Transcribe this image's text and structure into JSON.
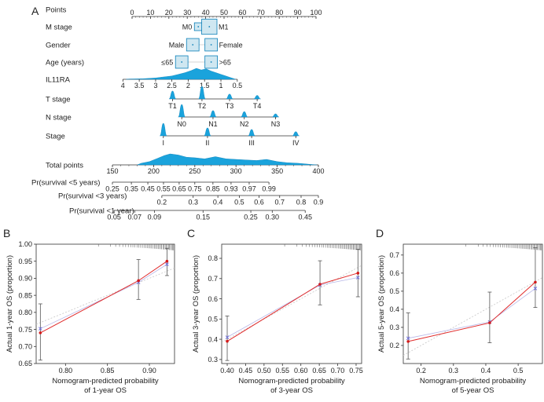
{
  "colors": {
    "density": "#1aa3dc",
    "density_dark": "#0b7fb8",
    "box_fill": "#cfe7f1",
    "box_stroke": "#0b7fb8",
    "axis": "#333333",
    "ideal_line": "#c7c7c7",
    "pred_line": "#e02a2a",
    "point": "#d31a1a",
    "cross": "#6d6de0",
    "errorbar": "#555555"
  },
  "chart_data": [
    {
      "type": "nomogram",
      "panel": "A",
      "rows": [
        {
          "label": "Points",
          "kind": "axis",
          "ticks": [
            0,
            10,
            20,
            30,
            40,
            50,
            60,
            70,
            80,
            90,
            100
          ],
          "tick_labels": [
            "0",
            "10",
            "20",
            "30",
            "40",
            "50",
            "60",
            "70",
            "80",
            "90",
            "100"
          ]
        },
        {
          "label": "M stage",
          "kind": "boxes",
          "levels": [
            {
              "name": "M0",
              "points": 36,
              "prop": 0.08
            },
            {
              "name": "M1",
              "points": 42,
              "prop": 0.92
            }
          ]
        },
        {
          "label": "Gender",
          "kind": "boxes",
          "levels": [
            {
              "name": "Male",
              "points": 33,
              "prop": 0.5
            },
            {
              "name": "Female",
              "points": 43,
              "prop": 0.5
            }
          ]
        },
        {
          "label": "Age (years)",
          "kind": "boxes",
          "levels": [
            {
              "name": "≤65",
              "points": 27,
              "prop": 0.5
            },
            {
              "name": ">65",
              "points": 43,
              "prop": 0.5
            }
          ]
        },
        {
          "label": "IL11RA",
          "kind": "continuous",
          "values": [
            4,
            3.5,
            3,
            2.5,
            2,
            1.5,
            1,
            0.5
          ],
          "value_labels": [
            "4",
            "3.5",
            "3",
            "2.5",
            "2",
            "1.5",
            "1",
            "0.5"
          ],
          "points_at_values": [
            -5,
            3.9,
            12.8,
            21.6,
            30.5,
            39.4,
            48.3,
            57.2
          ]
        },
        {
          "label": "T stage",
          "kind": "levels",
          "levels": [
            {
              "name": "T1",
              "points": 22,
              "density": 0.55
            },
            {
              "name": "T2",
              "points": 38,
              "density": 1.0
            },
            {
              "name": "T3",
              "points": 53,
              "density": 0.25
            },
            {
              "name": "T4",
              "points": 68,
              "density": 0.12
            }
          ]
        },
        {
          "label": "N stage",
          "kind": "levels",
          "levels": [
            {
              "name": "N0",
              "points": 27,
              "density": 1.0
            },
            {
              "name": "N1",
              "points": 44,
              "density": 0.4
            },
            {
              "name": "N2",
              "points": 61,
              "density": 0.3
            },
            {
              "name": "N3",
              "points": 78,
              "density": 0.08
            }
          ]
        },
        {
          "label": "Stage",
          "kind": "levels",
          "levels": [
            {
              "name": "I",
              "points": 17,
              "density": 1.0
            },
            {
              "name": "II",
              "points": 41,
              "density": 0.55
            },
            {
              "name": "III",
              "points": 65,
              "density": 0.4
            },
            {
              "name": "IV",
              "points": 89,
              "density": 0.18
            }
          ]
        },
        {
          "label": "Total points",
          "kind": "total",
          "ticks": [
            150,
            200,
            250,
            300,
            350,
            400
          ],
          "tick_labels": [
            "150",
            "200",
            "250",
            "300",
            "350",
            "400"
          ],
          "range": [
            150,
            400
          ]
        },
        {
          "label": "Pr(survival <5 years)",
          "kind": "prob",
          "tick_labels": [
            "0.25",
            "0.35",
            "0.45",
            "0.55",
            "0.65",
            "0.75",
            "0.85",
            "0.93",
            "0.97",
            "0.99"
          ],
          "total_points_at_ticks": [
            150,
            173,
            193,
            212,
            231,
            250,
            272,
            294,
            316,
            340
          ]
        },
        {
          "label": "Pr(survival <3 years)",
          "kind": "prob",
          "tick_labels": [
            "0.2",
            "0.3",
            "0.4",
            "0.5",
            "0.6",
            "0.7",
            "0.8",
            "0.9"
          ],
          "total_points_at_ticks": [
            210,
            248,
            278,
            304,
            328,
            353,
            379,
            400
          ]
        },
        {
          "label": "Pr(survival <1 year)",
          "kind": "prob",
          "tick_labels": [
            "0.05",
            "0.07",
            "0.09",
            "0.15",
            "0.25",
            "0.30",
            "0.45"
          ],
          "total_points_at_ticks": [
            152,
            177,
            201,
            260,
            318,
            344,
            384
          ]
        }
      ],
      "total_density": [
        {
          "x": 185,
          "d": 0.15
        },
        {
          "x": 195,
          "d": 0.3
        },
        {
          "x": 205,
          "d": 0.6
        },
        {
          "x": 213,
          "d": 0.85
        },
        {
          "x": 220,
          "d": 1.0
        },
        {
          "x": 230,
          "d": 0.9
        },
        {
          "x": 240,
          "d": 0.7
        },
        {
          "x": 250,
          "d": 0.65
        },
        {
          "x": 262,
          "d": 0.55
        },
        {
          "x": 275,
          "d": 0.75
        },
        {
          "x": 288,
          "d": 0.55
        },
        {
          "x": 300,
          "d": 0.5
        },
        {
          "x": 312,
          "d": 0.45
        },
        {
          "x": 325,
          "d": 0.4
        },
        {
          "x": 337,
          "d": 0.5
        },
        {
          "x": 350,
          "d": 0.3
        },
        {
          "x": 362,
          "d": 0.2
        },
        {
          "x": 375,
          "d": 0.15
        },
        {
          "x": 390,
          "d": 0.05
        }
      ],
      "il11ra_density": [
        {
          "v": 3.8,
          "d": 0.03
        },
        {
          "v": 3.4,
          "d": 0.05
        },
        {
          "v": 3.0,
          "d": 0.12
        },
        {
          "v": 2.8,
          "d": 0.2
        },
        {
          "v": 2.5,
          "d": 0.3
        },
        {
          "v": 2.3,
          "d": 0.45
        },
        {
          "v": 2.1,
          "d": 0.6
        },
        {
          "v": 1.9,
          "d": 0.8
        },
        {
          "v": 1.75,
          "d": 1.0
        },
        {
          "v": 1.6,
          "d": 0.85
        },
        {
          "v": 1.45,
          "d": 0.95
        },
        {
          "v": 1.3,
          "d": 0.75
        },
        {
          "v": 1.15,
          "d": 0.6
        },
        {
          "v": 1.0,
          "d": 0.45
        },
        {
          "v": 0.85,
          "d": 0.3
        },
        {
          "v": 0.7,
          "d": 0.15
        },
        {
          "v": 0.6,
          "d": 0.05
        }
      ]
    },
    {
      "type": "scatter",
      "panel": "B",
      "xlabel_line1": "Nomogram-predicted probability",
      "xlabel_line2": "of 1-year OS",
      "ylabel": "Actual 1-year OS (proportion)",
      "xlim": [
        0.765,
        0.93
      ],
      "ylim": [
        0.65,
        1.0
      ],
      "x_ticks": [
        0.8,
        0.85,
        0.9
      ],
      "x_tick_labels": [
        "0.80",
        "0.85",
        "0.90"
      ],
      "y_ticks": [
        0.65,
        0.7,
        0.75,
        0.8,
        0.85,
        0.9,
        0.95,
        1.0
      ],
      "y_tick_labels": [
        "0.65",
        "0.70",
        "0.75",
        "0.80",
        "0.85",
        "0.90",
        "0.95",
        "1.00"
      ],
      "points": [
        {
          "x": 0.77,
          "y": 0.74,
          "lo": 0.66,
          "hi": 0.825,
          "corrected": 0.752
        },
        {
          "x": 0.887,
          "y": 0.893,
          "lo": 0.838,
          "hi": 0.955,
          "corrected": 0.888
        },
        {
          "x": 0.921,
          "y": 0.95,
          "lo": 0.908,
          "hi": 0.988,
          "corrected": 0.941
        }
      ]
    },
    {
      "type": "scatter",
      "panel": "C",
      "xlabel_line1": "Nomogram-predicted probability",
      "xlabel_line2": "of 3-year OS",
      "ylabel": "Actual 3-year OS (proportion)",
      "xlim": [
        0.385,
        0.765
      ],
      "ylim": [
        0.28,
        0.87
      ],
      "x_ticks": [
        0.4,
        0.45,
        0.5,
        0.55,
        0.6,
        0.65,
        0.7,
        0.75
      ],
      "x_tick_labels": [
        "0.40",
        "0.45",
        "0.50",
        "0.55",
        "0.60",
        "0.65",
        "0.70",
        "0.75"
      ],
      "y_ticks": [
        0.3,
        0.4,
        0.5,
        0.6,
        0.7,
        0.8
      ],
      "y_tick_labels": [
        "0.3",
        "0.4",
        "0.5",
        "0.6",
        "0.7",
        "0.8"
      ],
      "points": [
        {
          "x": 0.4,
          "y": 0.39,
          "lo": 0.295,
          "hi": 0.515,
          "corrected": 0.41
        },
        {
          "x": 0.652,
          "y": 0.672,
          "lo": 0.57,
          "hi": 0.788,
          "corrected": 0.668
        },
        {
          "x": 0.755,
          "y": 0.727,
          "lo": 0.61,
          "hi": 0.845,
          "corrected": 0.705
        }
      ]
    },
    {
      "type": "scatter",
      "panel": "D",
      "xlabel_line1": "Nomogram-predicted probability",
      "xlabel_line2": "of 5-year OS",
      "ylabel": "Actual 5-year OS (proportion)",
      "xlim": [
        0.145,
        0.575
      ],
      "ylim": [
        0.1,
        0.76
      ],
      "x_ticks": [
        0.2,
        0.3,
        0.4,
        0.5
      ],
      "x_tick_labels": [
        "0.2",
        "0.3",
        "0.4",
        "0.5"
      ],
      "y_ticks": [
        0.2,
        0.3,
        0.4,
        0.5,
        0.6,
        0.7
      ],
      "y_tick_labels": [
        "0.2",
        "0.3",
        "0.4",
        "0.5",
        "0.6",
        "0.7"
      ],
      "points": [
        {
          "x": 0.16,
          "y": 0.222,
          "lo": 0.125,
          "hi": 0.38,
          "corrected": 0.24
        },
        {
          "x": 0.412,
          "y": 0.325,
          "lo": 0.215,
          "hi": 0.495,
          "corrected": 0.33
        },
        {
          "x": 0.553,
          "y": 0.55,
          "lo": 0.41,
          "hi": 0.74,
          "corrected": 0.515
        }
      ]
    }
  ]
}
